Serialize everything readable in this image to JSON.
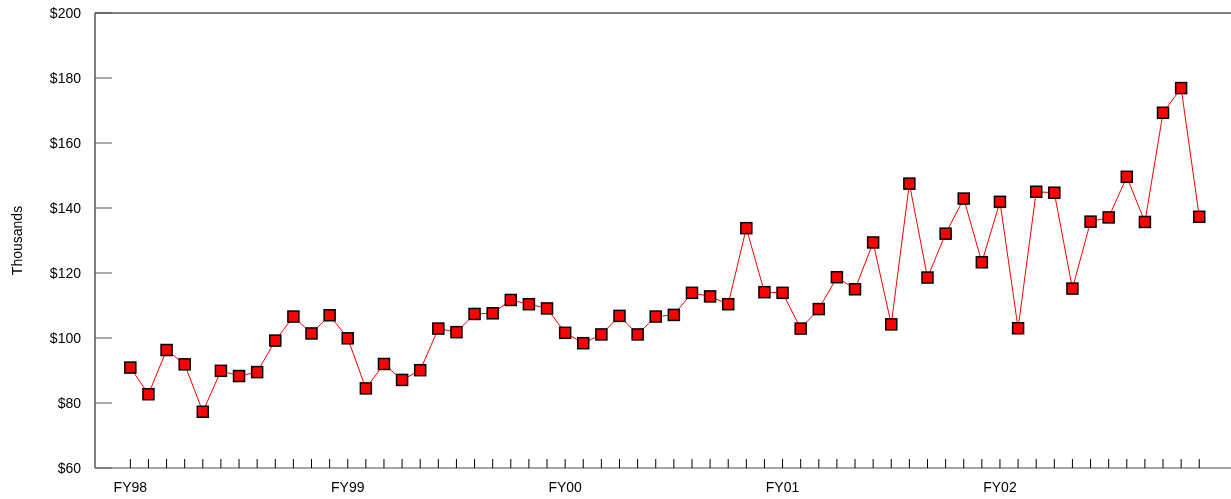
{
  "chart_data": {
    "type": "line",
    "ylabel": "Thousands",
    "categories": [
      "FY98",
      null,
      null,
      null,
      null,
      null,
      null,
      null,
      null,
      null,
      null,
      null,
      "FY99",
      null,
      null,
      null,
      null,
      null,
      null,
      null,
      null,
      null,
      null,
      null,
      "FY00",
      null,
      null,
      null,
      null,
      null,
      null,
      null,
      null,
      null,
      null,
      null,
      "FY01",
      null,
      null,
      null,
      null,
      null,
      null,
      null,
      null,
      null,
      null,
      null,
      "FY02",
      null,
      null,
      null,
      null,
      null,
      null,
      null,
      null,
      null,
      null,
      null
    ],
    "series": [
      {
        "color": "#ff0000",
        "values": [
          90.9,
          82.7,
          96.3,
          91.9,
          77.3,
          89.9,
          88.3,
          89.5,
          99.2,
          106.6,
          101.4,
          107.0,
          99.9,
          84.5,
          92.0,
          87.1,
          90.1,
          102.9,
          101.8,
          107.4,
          107.6,
          111.7,
          110.4,
          109.1,
          101.6,
          98.4,
          101.1,
          106.8,
          101.1,
          106.6,
          107.1,
          113.9,
          112.8,
          110.4,
          133.8,
          114.1,
          113.9,
          102.9,
          108.9,
          118.7,
          115.0,
          129.4,
          104.2,
          147.5,
          118.6,
          132.1,
          142.9,
          123.3,
          141.9,
          103.0,
          145.0,
          144.7,
          115.2,
          135.8,
          137.1,
          149.6,
          135.7,
          169.3,
          176.9,
          137.3
        ]
      }
    ],
    "ylim": [
      60,
      200
    ],
    "yticks": [
      {
        "value": 60,
        "label": "$60"
      },
      {
        "value": 80,
        "label": "$80"
      },
      {
        "value": 100,
        "label": "$100"
      },
      {
        "value": 120,
        "label": "$120"
      },
      {
        "value": 140,
        "label": "$140"
      },
      {
        "value": 160,
        "label": "$160"
      },
      {
        "value": 180,
        "label": "$180"
      },
      {
        "value": 200,
        "label": "$200"
      }
    ],
    "marker": "square",
    "line_style": "solid"
  }
}
